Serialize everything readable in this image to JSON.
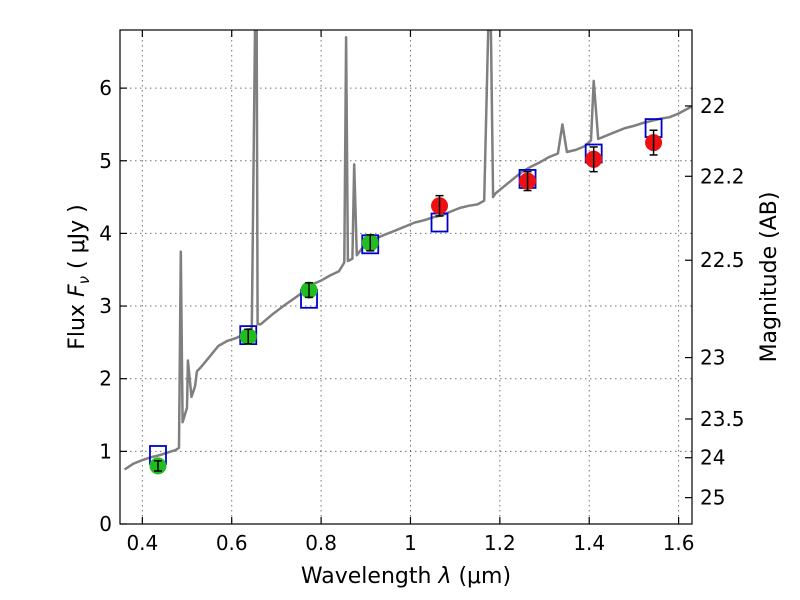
{
  "chart_data": {
    "type": "scatter",
    "xlabel_text": "Wavelength",
    "xlabel_symbol": "λ",
    "xlabel_unit": "(μm)",
    "ylabel_text": "Flux",
    "ylabel_symbol": "F",
    "ylabel_subscript": "ν",
    "ylabel_unit": "( μJy )",
    "y2label": "Magnitude (AB)",
    "xlim": [
      0.35,
      1.63
    ],
    "ylim": [
      0,
      6.8
    ],
    "xticks": [
      0.4,
      0.6,
      0.8,
      1,
      1.2,
      1.4,
      1.6
    ],
    "xtick_labels": [
      "0.4",
      "0.6",
      "0.8",
      "1",
      "1.2",
      "1.4",
      "1.6"
    ],
    "yticks": [
      0,
      1,
      2,
      3,
      4,
      5,
      6
    ],
    "ytick_labels": [
      "0",
      "1",
      "2",
      "3",
      "4",
      "5",
      "6"
    ],
    "y2ticks": [
      22,
      22.2,
      22.5,
      23,
      23.5,
      24,
      25
    ],
    "y2tick_labels": [
      "22",
      "22.2",
      "22.5",
      "23",
      "23.5",
      "24",
      "25"
    ],
    "grid": true,
    "series": [
      {
        "type": "line",
        "color": "#7f7f7f",
        "x": [
          0.36,
          0.38,
          0.4,
          0.42,
          0.44,
          0.46,
          0.475,
          0.482,
          0.486,
          0.49,
          0.5,
          0.502,
          0.51,
          0.518,
          0.522,
          0.53,
          0.55,
          0.57,
          0.59,
          0.61,
          0.63,
          0.645,
          0.652,
          0.656,
          0.658,
          0.665,
          0.69,
          0.72,
          0.75,
          0.78,
          0.8,
          0.82,
          0.84,
          0.852,
          0.856,
          0.86,
          0.87,
          0.874,
          0.88,
          0.89,
          0.91,
          0.93,
          0.95,
          0.97,
          0.99,
          1.01,
          1.03,
          1.05,
          1.07,
          1.09,
          1.11,
          1.13,
          1.15,
          1.165,
          1.174,
          1.18,
          1.185,
          1.19,
          1.21,
          1.23,
          1.25,
          1.27,
          1.29,
          1.31,
          1.33,
          1.34,
          1.35,
          1.37,
          1.39,
          1.404,
          1.41,
          1.42,
          1.44,
          1.46,
          1.48,
          1.5,
          1.52,
          1.54,
          1.56,
          1.58,
          1.6,
          1.63
        ],
        "y": [
          0.75,
          0.83,
          0.88,
          0.92,
          0.95,
          0.99,
          1.02,
          1.05,
          3.75,
          1.4,
          1.6,
          2.25,
          1.75,
          1.9,
          2.1,
          2.15,
          2.3,
          2.45,
          2.52,
          2.56,
          2.62,
          2.7,
          6.8,
          6.8,
          2.75,
          2.75,
          2.88,
          3.02,
          3.15,
          3.3,
          3.35,
          3.42,
          3.48,
          3.6,
          6.7,
          3.62,
          3.65,
          4.95,
          3.7,
          3.78,
          3.9,
          3.95,
          4.0,
          4.05,
          4.1,
          4.15,
          4.18,
          4.22,
          4.25,
          4.3,
          4.35,
          4.38,
          4.4,
          4.45,
          6.8,
          6.8,
          4.5,
          4.55,
          4.65,
          4.75,
          4.85,
          4.92,
          4.98,
          5.05,
          5.1,
          5.5,
          5.12,
          5.15,
          5.2,
          5.28,
          6.1,
          5.3,
          5.35,
          5.4,
          5.45,
          5.48,
          5.52,
          5.55,
          5.58,
          5.6,
          5.65,
          5.75
        ]
      },
      {
        "type": "squares",
        "color": "#0000cc",
        "x": [
          0.435,
          0.637,
          0.773,
          0.91,
          1.065,
          1.262,
          1.41,
          1.544
        ],
        "y": [
          0.95,
          2.6,
          3.1,
          3.85,
          4.15,
          4.75,
          5.1,
          5.45
        ]
      },
      {
        "type": "points",
        "color": "#22bb22",
        "x": [
          0.435,
          0.637,
          0.773,
          0.91
        ],
        "y": [
          0.8,
          2.58,
          3.22,
          3.87
        ],
        "yerr": [
          0.07,
          0.1,
          0.1,
          0.11
        ]
      },
      {
        "type": "points",
        "color": "#ee1111",
        "x": [
          1.065,
          1.262,
          1.41,
          1.544
        ],
        "y": [
          4.38,
          4.72,
          5.02,
          5.25
        ],
        "yerr": [
          0.14,
          0.13,
          0.17,
          0.17
        ]
      }
    ]
  }
}
